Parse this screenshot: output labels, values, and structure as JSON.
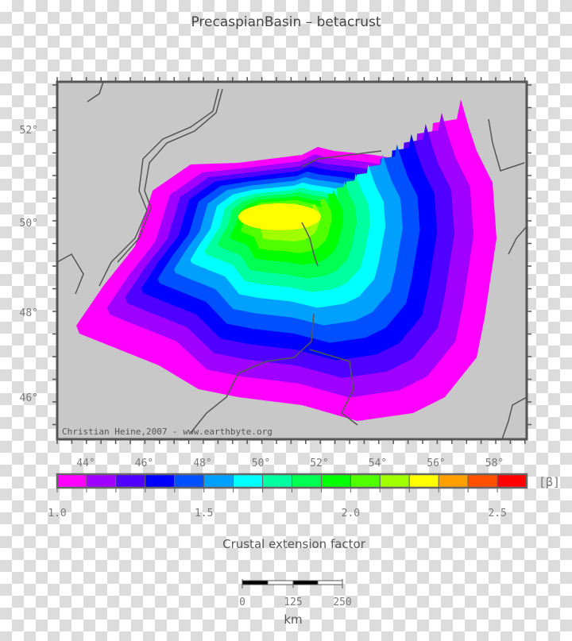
{
  "title": "PrecaspianBasin – betacrust",
  "map": {
    "credit": "Christian Heine,2007 - www.earthbyte.org",
    "land_color": "#c8c8c8",
    "lat_labels": [
      "52°",
      "50°",
      "48°",
      "46°"
    ],
    "lon_labels": [
      "44°",
      "46°",
      "48°",
      "50°",
      "52°",
      "54°",
      "56°",
      "58°"
    ]
  },
  "colorbar": {
    "colors": [
      "#ff00ff",
      "#a000ff",
      "#5000ff",
      "#0000ff",
      "#0050ff",
      "#00a0ff",
      "#00ffff",
      "#00ffa0",
      "#00ff50",
      "#00ff00",
      "#50ff00",
      "#a0ff00",
      "#ffff00",
      "#ffa000",
      "#ff5000",
      "#ff0000"
    ],
    "tick_labels": [
      "1.0",
      "1.5",
      "2.0",
      "2.5"
    ],
    "unit": "[β]",
    "label": "Crustal extension factor"
  },
  "scalebar": {
    "labels": [
      "0",
      "125",
      "250"
    ],
    "unit": "km"
  }
}
